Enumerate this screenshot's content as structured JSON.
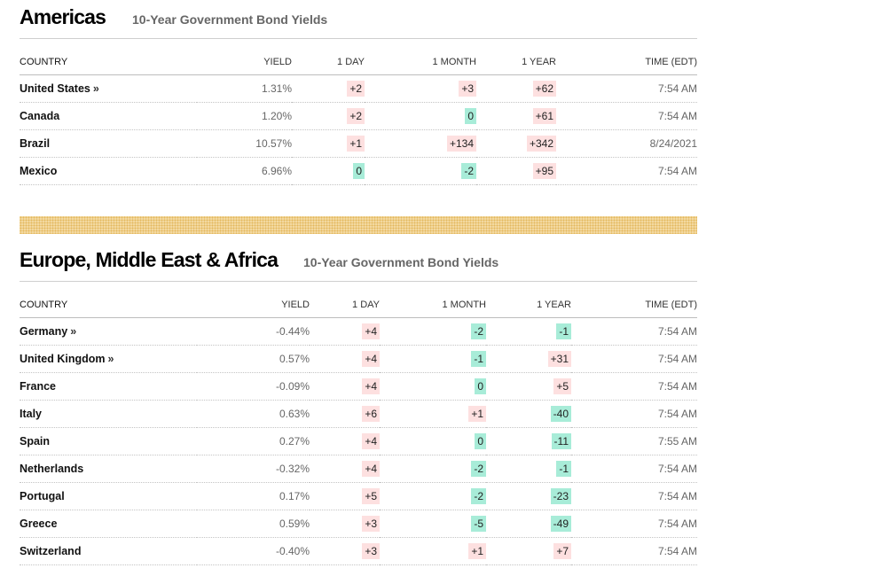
{
  "sections": [
    {
      "title": "Americas",
      "subtitle": "10-Year Government Bond Yields",
      "columns": [
        "COUNTRY",
        "YIELD",
        "1 DAY",
        "1 MONTH",
        "1 YEAR",
        "TIME (EDT)"
      ],
      "rows": [
        {
          "country": "United States",
          "link": "»",
          "yield": "1.31%",
          "day": "+2",
          "month": "+3",
          "year": "+62",
          "time": "7:54 AM"
        },
        {
          "country": "Canada",
          "link": "",
          "yield": "1.20%",
          "day": "+2",
          "month": "0",
          "year": "+61",
          "time": "7:54 AM"
        },
        {
          "country": "Brazil",
          "link": "",
          "yield": "10.57%",
          "day": "+1",
          "month": "+134",
          "year": "+342",
          "time": "8/24/2021"
        },
        {
          "country": "Mexico",
          "link": "",
          "yield": "6.96%",
          "day": "0",
          "month": "-2",
          "year": "+95",
          "time": "7:54 AM"
        }
      ]
    },
    {
      "title": "Europe, Middle East & Africa",
      "subtitle": "10-Year Government Bond Yields",
      "columns": [
        "COUNTRY",
        "YIELD",
        "1 DAY",
        "1 MONTH",
        "1 YEAR",
        "TIME (EDT)"
      ],
      "rows": [
        {
          "country": "Germany",
          "link": "»",
          "yield": "-0.44%",
          "day": "+4",
          "month": "-2",
          "year": "-1",
          "time": "7:54 AM"
        },
        {
          "country": "United Kingdom",
          "link": "»",
          "yield": "0.57%",
          "day": "+4",
          "month": "-1",
          "year": "+31",
          "time": "7:54 AM"
        },
        {
          "country": "France",
          "link": "",
          "yield": "-0.09%",
          "day": "+4",
          "month": "0",
          "year": "+5",
          "time": "7:54 AM"
        },
        {
          "country": "Italy",
          "link": "",
          "yield": "0.63%",
          "day": "+6",
          "month": "+1",
          "year": "-40",
          "time": "7:54 AM"
        },
        {
          "country": "Spain",
          "link": "",
          "yield": "0.27%",
          "day": "+4",
          "month": "0",
          "year": "-11",
          "time": "7:55 AM"
        },
        {
          "country": "Netherlands",
          "link": "",
          "yield": "-0.32%",
          "day": "+4",
          "month": "-2",
          "year": "-1",
          "time": "7:54 AM"
        },
        {
          "country": "Portugal",
          "link": "",
          "yield": "0.17%",
          "day": "+5",
          "month": "-2",
          "year": "-23",
          "time": "7:54 AM"
        },
        {
          "country": "Greece",
          "link": "",
          "yield": "0.59%",
          "day": "+3",
          "month": "-5",
          "year": "-49",
          "time": "7:54 AM"
        },
        {
          "country": "Switzerland",
          "link": "",
          "yield": "-0.40%",
          "day": "+3",
          "month": "+1",
          "year": "+7",
          "time": "7:54 AM"
        }
      ]
    }
  ],
  "colors": {
    "positive_chip": "#fde0e0",
    "negative_chip": "#a8ecd8",
    "divider": "#f3d9a0"
  }
}
